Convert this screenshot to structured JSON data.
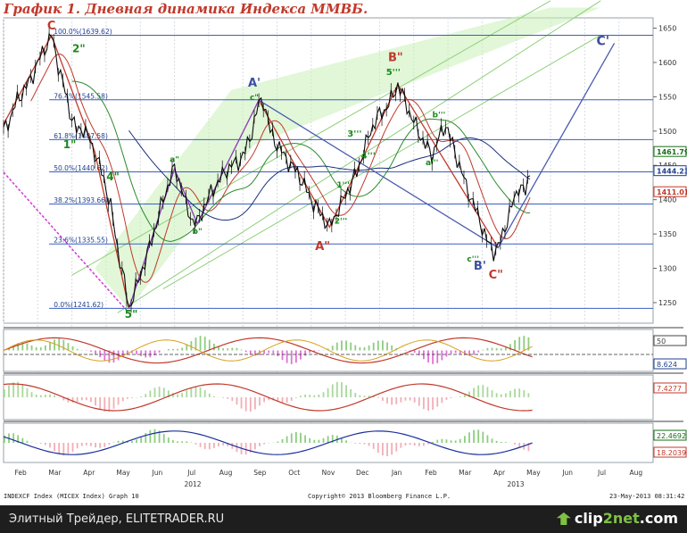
{
  "title": "График 1.   Дневная динамика Индекса ММВБ.",
  "footer": {
    "left": "INDEXCF Index (MICEX Index) Graph 10",
    "center": "Copyright© 2013 Bloomberg Finance L.P.",
    "right": "23-May-2013 08:31:42"
  },
  "bottom_bar": {
    "text": "Элитный Трейдер, ELITETRADER.RU",
    "brand_a": "clip",
    "brand_b": "2net",
    "brand_c": ".com"
  },
  "chart_data": {
    "type": "line",
    "y_axis": {
      "ticks": [
        1250,
        1300,
        1350,
        1400,
        1450,
        1500,
        1550,
        1600,
        1650
      ],
      "range": [
        1220,
        1665
      ]
    },
    "x_axis": {
      "months": [
        "Feb",
        "Mar",
        "Apr",
        "May",
        "Jun",
        "Jul",
        "Aug",
        "Sep",
        "Oct",
        "Nov",
        "Dec",
        "Jan",
        "Feb",
        "Mar",
        "Apr",
        "May",
        "Jun",
        "Jul",
        "Aug"
      ],
      "years": [
        "2012",
        "2013"
      ]
    },
    "price_series": [
      [
        0,
        1500
      ],
      [
        3,
        1520
      ],
      [
        6,
        1545
      ],
      [
        9,
        1560
      ],
      [
        12,
        1575
      ],
      [
        15,
        1600
      ],
      [
        18,
        1620
      ],
      [
        21,
        1639.6
      ],
      [
        23,
        1610
      ],
      [
        26,
        1570
      ],
      [
        29,
        1530
      ],
      [
        32,
        1500
      ],
      [
        35,
        1505
      ],
      [
        38,
        1485
      ],
      [
        41,
        1460
      ],
      [
        44,
        1430
      ],
      [
        47,
        1390
      ],
      [
        50,
        1330
      ],
      [
        53,
        1280
      ],
      [
        55,
        1241.6
      ],
      [
        58,
        1270
      ],
      [
        61,
        1300
      ],
      [
        64,
        1330
      ],
      [
        67,
        1365
      ],
      [
        70,
        1400
      ],
      [
        73,
        1430
      ],
      [
        75,
        1445
      ],
      [
        78,
        1420
      ],
      [
        80,
        1390
      ],
      [
        83,
        1370
      ],
      [
        85,
        1365
      ],
      [
        88,
        1390
      ],
      [
        91,
        1410
      ],
      [
        94,
        1425
      ],
      [
        97,
        1440
      ],
      [
        100,
        1450
      ],
      [
        103,
        1455
      ],
      [
        106,
        1470
      ],
      [
        109,
        1500
      ],
      [
        112,
        1540
      ],
      [
        114,
        1545
      ],
      [
        117,
        1500
      ],
      [
        120,
        1480
      ],
      [
        123,
        1465
      ],
      [
        126,
        1450
      ],
      [
        129,
        1440
      ],
      [
        132,
        1420
      ],
      [
        135,
        1400
      ],
      [
        138,
        1385
      ],
      [
        141,
        1370
      ],
      [
        143,
        1360
      ],
      [
        146,
        1380
      ],
      [
        149,
        1400
      ],
      [
        152,
        1420
      ],
      [
        155,
        1440
      ],
      [
        158,
        1470
      ],
      [
        161,
        1500
      ],
      [
        164,
        1520
      ],
      [
        167,
        1530
      ],
      [
        170,
        1545
      ],
      [
        173,
        1568
      ],
      [
        176,
        1545
      ],
      [
        179,
        1520
      ],
      [
        182,
        1500
      ],
      [
        185,
        1480
      ],
      [
        188,
        1465
      ],
      [
        191,
        1490
      ],
      [
        194,
        1510
      ],
      [
        197,
        1480
      ],
      [
        200,
        1450
      ],
      [
        203,
        1420
      ],
      [
        206,
        1395
      ],
      [
        209,
        1370
      ],
      [
        212,
        1340
      ],
      [
        215,
        1325
      ],
      [
        217,
        1330
      ],
      [
        220,
        1360
      ],
      [
        223,
        1390
      ],
      [
        226,
        1420
      ],
      [
        229,
        1410
      ],
      [
        231,
        1444.2
      ]
    ],
    "price_x_range": [
      0,
      285
    ],
    "price_labels": [
      {
        "text": "1461.79",
        "value": 1461.79,
        "color": "#1a6e1a"
      },
      {
        "text": "1444.23",
        "value": 1444.23,
        "color": "#1f3f8f"
      },
      {
        "text": "1411.01",
        "value": 1411.01,
        "color": "#c0392b"
      }
    ],
    "fib_levels": [
      {
        "label": "100.0%(1639.62)",
        "value": 1639.62
      },
      {
        "label": "76.4%(1545.58)",
        "value": 1545.58
      },
      {
        "label": "61.8%(1487.58)",
        "value": 1487.58
      },
      {
        "label": "50.0%(1440.62)",
        "value": 1440.62
      },
      {
        "label": "38.2%(1393.66)",
        "value": 1393.66
      },
      {
        "label": "23.6%(1335.55)",
        "value": 1335.55
      },
      {
        "label": "0.0%(1241.62)",
        "value": 1241.62
      }
    ],
    "wave_labels": [
      {
        "text": "C",
        "t": 21,
        "v": 1648,
        "color": "#c0392b",
        "size": 13
      },
      {
        "text": "2\"",
        "t": 33,
        "v": 1615,
        "color": "#1a8a1a",
        "size": 12
      },
      {
        "text": "1\"",
        "t": 29,
        "v": 1475,
        "color": "#1a8a1a",
        "size": 12
      },
      {
        "text": "4\"",
        "t": 48,
        "v": 1428,
        "color": "#1a8a1a",
        "size": 12
      },
      {
        "text": "5\"",
        "t": 56,
        "v": 1228,
        "color": "#1a8a1a",
        "size": 12
      },
      {
        "text": "a\"",
        "t": 75,
        "v": 1455,
        "color": "#1a8a1a",
        "size": 9
      },
      {
        "text": "b\"",
        "t": 85,
        "v": 1350,
        "color": "#1a8a1a",
        "size": 9
      },
      {
        "text": "A'",
        "t": 110,
        "v": 1565,
        "color": "#3a4fa0",
        "size": 13
      },
      {
        "text": "c\"",
        "t": 110,
        "v": 1545,
        "color": "#1a8a1a",
        "size": 9
      },
      {
        "text": "1'''",
        "t": 149,
        "v": 1418,
        "color": "#1a8a1a",
        "size": 9
      },
      {
        "text": "2'''",
        "t": 148,
        "v": 1365,
        "color": "#1a8a1a",
        "size": 9
      },
      {
        "text": "3'''",
        "t": 154,
        "v": 1492,
        "color": "#1a8a1a",
        "size": 10
      },
      {
        "text": "4'''",
        "t": 160,
        "v": 1460,
        "color": "#1a8a1a",
        "size": 10
      },
      {
        "text": "A\"",
        "t": 140,
        "v": 1327,
        "color": "#c0392b",
        "size": 13
      },
      {
        "text": "B\"",
        "t": 172,
        "v": 1602,
        "color": "#c0392b",
        "size": 13
      },
      {
        "text": "5'''",
        "t": 171,
        "v": 1582,
        "color": "#1a8a1a",
        "size": 10
      },
      {
        "text": "b'''",
        "t": 191,
        "v": 1520,
        "color": "#1a8a1a",
        "size": 9
      },
      {
        "text": "a'''",
        "t": 188,
        "v": 1450,
        "color": "#1a8a1a",
        "size": 9
      },
      {
        "text": "c'''",
        "t": 206,
        "v": 1310,
        "color": "#1a8a1a",
        "size": 9
      },
      {
        "text": "B'",
        "t": 209,
        "v": 1298,
        "color": "#3a4fa0",
        "size": 13
      },
      {
        "text": "C\"",
        "t": 216,
        "v": 1285,
        "color": "#c0392b",
        "size": 13
      },
      {
        "text": "C'",
        "t": 263,
        "v": 1625,
        "color": "#3a4fa0",
        "size": 14
      }
    ],
    "osc1_labels": [
      {
        "text": "50",
        "color": "#444"
      },
      {
        "text": "8.624",
        "color": "#1f3f8f"
      }
    ],
    "osc2_labels": [
      {
        "text": "7.4277",
        "color": "#c0392b"
      }
    ],
    "osc3_labels": [
      {
        "text": "22.4692",
        "color": "#1a6e1a"
      },
      {
        "text": "18.2039",
        "color": "#c0392b"
      }
    ]
  }
}
